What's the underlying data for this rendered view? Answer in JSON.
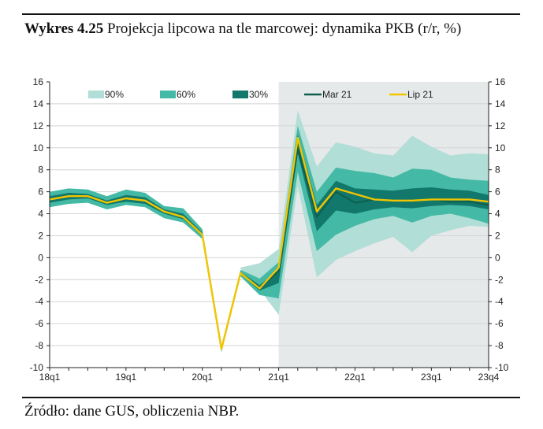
{
  "caption": {
    "prefix": "Wykres 4.25",
    "title": "Projekcja lipcowa na tle marcowej: dynamika PKB (r/r, %)"
  },
  "source": "Źródło: dane GUS, obliczenia NBP.",
  "colors": {
    "band90": "#b1ded6",
    "band60": "#44b9a5",
    "band30": "#11786b",
    "mar21": "#0f5f4e",
    "lip21": "#f2c500",
    "projection_shade": "#e6e9ea",
    "gridline": "#d4d4d4",
    "axis": "#222222"
  },
  "chart_data": {
    "type": "line",
    "ylim": [
      -10,
      16
    ],
    "y_ticks": [
      -10,
      -8,
      -6,
      -4,
      -2,
      0,
      2,
      4,
      6,
      8,
      10,
      12,
      14,
      16
    ],
    "right_axis": true,
    "grid": true,
    "legend_position": "top",
    "x_ticks": [
      {
        "label": "18q1",
        "index": 0
      },
      {
        "label": "19q1",
        "index": 4
      },
      {
        "label": "20q1",
        "index": 8
      },
      {
        "label": "21q1",
        "index": 12
      },
      {
        "label": "22q1",
        "index": 16
      },
      {
        "label": "23q1",
        "index": 20
      },
      {
        "label": "23q4",
        "index": 23
      }
    ],
    "projection_start": "21q1",
    "x": [
      "18q1",
      "18q2",
      "18q3",
      "18q4",
      "19q1",
      "19q2",
      "19q3",
      "19q4",
      "20q1",
      "20q2",
      "20q3",
      "20q4",
      "21q1",
      "21q2",
      "21q3",
      "21q4",
      "22q1",
      "22q2",
      "22q3",
      "22q4",
      "23q1",
      "23q2",
      "23q3",
      "23q4"
    ],
    "fan_chart": {
      "band_90": {
        "lower": [
          null,
          null,
          null,
          null,
          null,
          null,
          null,
          null,
          null,
          null,
          -1.0,
          -2.9,
          -5.2,
          6.5,
          -1.8,
          -0.2,
          0.6,
          1.3,
          1.9,
          0.5,
          2.0,
          2.5,
          2.9,
          2.8
        ],
        "upper": [
          null,
          null,
          null,
          null,
          null,
          null,
          null,
          null,
          null,
          null,
          -0.9,
          -0.5,
          0.8,
          13.4,
          8.3,
          10.5,
          10.1,
          9.5,
          9.3,
          11.1,
          10.1,
          9.3,
          9.5,
          9.4
        ]
      },
      "band_60": {
        "lower": [
          4.6,
          4.9,
          5.0,
          4.4,
          4.8,
          4.6,
          3.6,
          3.2,
          1.7,
          -8.6,
          -1.7,
          -3.4,
          -3.7,
          7.8,
          0.6,
          2.1,
          2.9,
          3.5,
          3.8,
          3.2,
          3.8,
          4.0,
          3.6,
          3.1
        ],
        "upper": [
          6.0,
          6.3,
          6.2,
          5.6,
          6.2,
          5.9,
          4.7,
          4.5,
          2.6,
          -8.0,
          -1.1,
          -1.9,
          -0.4,
          12.0,
          6.0,
          8.2,
          7.9,
          7.7,
          7.3,
          8.1,
          8.0,
          7.3,
          7.1,
          7.0
        ]
      },
      "band_30": {
        "lower": [
          5.0,
          5.3,
          5.4,
          4.8,
          5.1,
          4.9,
          4.0,
          3.5,
          2.0,
          -8.4,
          -1.5,
          -3.0,
          -2.3,
          9.5,
          2.4,
          4.3,
          4.0,
          4.4,
          4.6,
          4.5,
          4.7,
          4.8,
          4.7,
          4.4
        ],
        "upper": [
          5.6,
          5.9,
          5.8,
          5.2,
          5.7,
          5.5,
          4.4,
          4.0,
          2.3,
          -8.2,
          -1.3,
          -2.5,
          -1.1,
          11.2,
          4.8,
          7.0,
          6.3,
          6.2,
          6.1,
          6.3,
          6.4,
          6.2,
          6.1,
          5.7
        ]
      }
    },
    "series": [
      {
        "name": "Mar 21",
        "values": [
          5.3,
          5.6,
          5.6,
          5.0,
          5.4,
          5.2,
          4.2,
          3.7,
          2.1,
          -8.3,
          -1.4,
          -2.8,
          -1.2,
          9.9,
          3.7,
          6.0,
          5.0,
          5.3,
          5.2,
          5.2,
          5.3,
          5.1,
          5.1,
          4.8
        ]
      },
      {
        "name": "Lip 21",
        "values": [
          5.3,
          5.6,
          5.6,
          5.0,
          5.4,
          5.2,
          4.2,
          3.7,
          2.1,
          -8.3,
          -1.4,
          -2.8,
          -0.9,
          10.9,
          4.2,
          6.3,
          5.8,
          5.3,
          5.2,
          5.2,
          5.3,
          5.3,
          5.3,
          5.1
        ]
      }
    ],
    "legend": [
      {
        "label": "90%",
        "kind": "box",
        "color_key": "band90"
      },
      {
        "label": "60%",
        "kind": "box",
        "color_key": "band60"
      },
      {
        "label": "30%",
        "kind": "box",
        "color_key": "band30"
      },
      {
        "label": "Mar 21",
        "kind": "line",
        "color_key": "mar21"
      },
      {
        "label": "Lip 21",
        "kind": "line",
        "color_key": "lip21"
      }
    ]
  }
}
